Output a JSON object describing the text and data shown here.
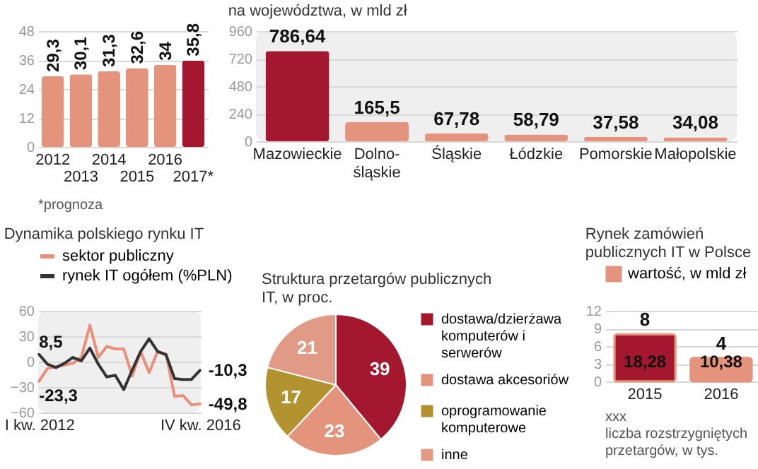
{
  "chart_data": [
    {
      "type": "bar",
      "categories": [
        "2012",
        "2013",
        "2014",
        "2015",
        "2016",
        "2017*"
      ],
      "values": [
        29.3,
        30.1,
        31.3,
        32.6,
        34,
        35.8
      ],
      "colors": [
        "#e4937c",
        "#e4937c",
        "#e4937c",
        "#e4937c",
        "#e4937c",
        "#a3182f"
      ],
      "value_labels": [
        "29,3",
        "30,1",
        "31,3",
        "32,6",
        "34",
        "35,8"
      ],
      "ylim": [
        0,
        48
      ],
      "yticks": [
        0,
        12,
        24,
        36,
        48
      ],
      "grid": "y",
      "annotations": [
        "*prognoza"
      ]
    },
    {
      "type": "bar",
      "title": "na województwa, w mld zł",
      "categories": [
        "Mazowieckie",
        "Dolno-śląskie",
        "Śląskie",
        "Łódzkie",
        "Pomorskie",
        "Małopolskie"
      ],
      "values": [
        786.64,
        165.5,
        67.78,
        58.79,
        37.58,
        34.08
      ],
      "colors": [
        "#a3182f",
        "#e4937c",
        "#e4937c",
        "#e4937c",
        "#e4937c",
        "#e4937c"
      ],
      "value_labels": [
        "786,64",
        "165,5",
        "67,78",
        "58,79",
        "37,58",
        "34,08"
      ],
      "ylim": [
        0,
        960
      ],
      "yticks": [
        0,
        240,
        480,
        720,
        960
      ],
      "grid": "y"
    },
    {
      "type": "line",
      "title": "Dynamika polskiego rynku IT",
      "categories": [
        "I kw. 2012",
        null,
        null,
        null,
        null,
        null,
        null,
        null,
        null,
        null,
        null,
        null,
        null,
        null,
        null,
        null,
        null,
        null,
        null,
        "IV kw. 2016"
      ],
      "series": [
        {
          "name": "sektor publiczny",
          "color": "#e8907a",
          "values": [
            -23.3,
            -8,
            -6,
            -4,
            -2,
            5,
            43,
            5,
            18,
            15,
            15,
            -17,
            12,
            -13,
            12,
            9,
            -41,
            -40,
            -51,
            -49.8
          ]
        },
        {
          "name": "rynek IT ogółem (%PLN)",
          "color": "#333333",
          "values": [
            8.5,
            -3,
            -7,
            -2,
            5,
            1,
            16,
            -3,
            -18,
            -16,
            -33,
            -10,
            12,
            27,
            12,
            8,
            -20,
            -21,
            -21,
            -10.3
          ]
        }
      ],
      "ylim": [
        -60,
        60
      ],
      "yticks": [
        -60,
        -30,
        0,
        30,
        60
      ],
      "grid": "y",
      "legend": "top",
      "annotations": [
        {
          "text": "8,5",
          "x": "I kw. 2012",
          "y": 8.5
        },
        {
          "text": "-23,3",
          "x": "I kw. 2012",
          "y": -23.3
        },
        {
          "text": "-10,3",
          "x": "IV kw. 2016",
          "y": -10.3
        },
        {
          "text": "-49,8",
          "x": "IV kw. 2016",
          "y": -49.8
        }
      ]
    },
    {
      "type": "pie",
      "title": "Struktura przetargów publicznych IT, w proc.",
      "categories": [
        "dostawa/dzierżawa komputerów i serwerów",
        "dostawa akcesoriów",
        "oprogramowanie komputerowe",
        "inne"
      ],
      "values": [
        39,
        23,
        17,
        21
      ],
      "colors": [
        "#a3182f",
        "#e4937c",
        "#b39330",
        "#e09a86"
      ],
      "data_labels": true,
      "legend": "right"
    },
    {
      "type": "bar",
      "title": "Rynek zamówień publicznych IT w Polsce",
      "categories": [
        "2015",
        "2016"
      ],
      "series": [
        {
          "name": "wartość, w mld zł",
          "color": "#e4937c",
          "colors": [
            "#a3182f",
            "#e4937c"
          ],
          "values": [
            8,
            4
          ]
        }
      ],
      "ylim": [
        0,
        12
      ],
      "yticks": [
        0,
        3,
        6,
        9,
        12
      ],
      "grid": "y",
      "data_labels": true,
      "legend": "top",
      "annotations": [
        {
          "text": "18,28",
          "x": "2015",
          "y": 1
        },
        {
          "text": "10,38",
          "x": "2016",
          "y": 1
        },
        "xxx",
        "liczba rozstrzygniętych przetargów, w tys."
      ]
    }
  ]
}
